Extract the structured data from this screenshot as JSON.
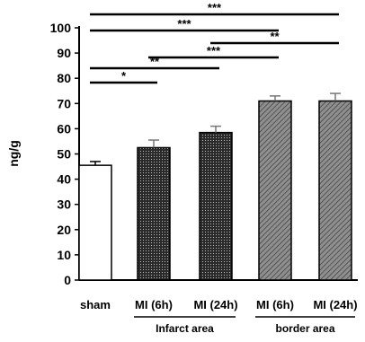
{
  "chart_data": {
    "type": "bar",
    "ylabel": "ng/g",
    "ylim": [
      0,
      100
    ],
    "yticks": [
      "0",
      "10",
      "20",
      "30",
      "40",
      "50",
      "60",
      "70",
      "80",
      "90",
      "100"
    ],
    "categories": [
      "sham",
      "MI (6h)",
      "MI (24h)",
      "MI (6h)",
      "MI (24h)"
    ],
    "values": [
      45.5,
      52.5,
      58.5,
      71,
      71
    ],
    "errors": [
      1.5,
      3,
      2.5,
      2,
      3
    ],
    "groups": [
      {
        "label": "Infarct area",
        "members": [
          1,
          2
        ]
      },
      {
        "label": "border area",
        "members": [
          3,
          4
        ]
      }
    ],
    "significance": [
      {
        "from": 0,
        "to": 4,
        "label": "***"
      },
      {
        "from": 0,
        "to": 3,
        "label": "***"
      },
      {
        "from": 2,
        "to": 4,
        "label": "**"
      },
      {
        "from": 1,
        "to": 3,
        "label": "***"
      },
      {
        "from": 0,
        "to": 2,
        "label": "**"
      },
      {
        "from": 0,
        "to": 1,
        "label": "*"
      }
    ],
    "grid": false,
    "legend": "none"
  },
  "colors": {
    "sham": "#ffffff",
    "infarct": "#2a2a2a",
    "border": "#8f8f8f",
    "axis": "#000000"
  }
}
